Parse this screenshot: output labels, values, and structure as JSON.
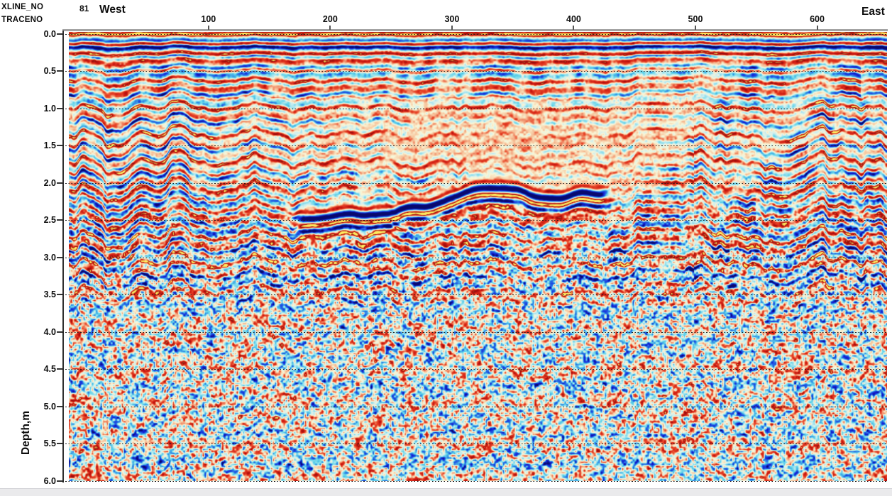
{
  "header": {
    "xline_label": "XLINE_NO",
    "xline_value": "81",
    "trace_label": "TRACENO",
    "west": "West",
    "east": "East"
  },
  "axes": {
    "x": {
      "name": "TRACENO",
      "tick_labels": [
        "100",
        "200",
        "300",
        "400",
        "500",
        "600"
      ],
      "tick_values": [
        100,
        200,
        300,
        400,
        500,
        600
      ],
      "range": [
        -20,
        658
      ]
    },
    "y": {
      "title": "Depth,m",
      "tick_labels": [
        "0.0",
        "0.5",
        "1.0",
        "1.5",
        "2.0",
        "2.5",
        "3.0",
        "3.5",
        "4.0",
        "4.5",
        "5.0",
        "5.5",
        "6.0"
      ],
      "tick_values": [
        0,
        0.5,
        1,
        1.5,
        2,
        2.5,
        3,
        3.5,
        4,
        4.5,
        5,
        5.5,
        6
      ],
      "range": [
        0,
        6
      ]
    }
  },
  "chart_data": {
    "type": "heatmap",
    "subtype": "seismic-depth-section",
    "crossline_number": 81,
    "orientation": {
      "left": "West",
      "right": "East"
    },
    "x_axis": {
      "name": "TRACENO",
      "tick_values": [
        100,
        200,
        300,
        400,
        500,
        600
      ],
      "approx_range": [
        -20,
        658
      ]
    },
    "y_axis": {
      "name": "Depth,m",
      "tick_values": [
        0,
        0.5,
        1,
        1.5,
        2,
        2.5,
        3,
        3.5,
        4,
        4.5,
        5,
        5.5,
        6
      ],
      "range": [
        0,
        6
      ],
      "units": "m"
    },
    "grid": {
      "horizontal_dotted_lines_every_m": 0.5
    },
    "amplitude_palette": {
      "extreme_negative": "#0a0a6e",
      "negative": "#1423d7",
      "weak_negative": "#5ad2e6",
      "zero": "#faf7d7",
      "weak_positive": "#f6be96",
      "positive": "#e84628",
      "strong_positive": "#9c0e0e",
      "extreme_positive": "#ffeb5f"
    },
    "features": [
      {
        "name": "surface-layering",
        "depth_range_m": [
          0.0,
          0.35
        ],
        "trace_range": [
          -20,
          658
        ],
        "description": "continuous high-amplitude horizontal red/blue banding with yellow peak cores along the full section top"
      },
      {
        "name": "shallow-wiggly-reflectors",
        "depth_range_m": [
          0.35,
          2.0
        ],
        "trace_range": [
          -20,
          658
        ],
        "description": "semi-continuous wiggly red/blue reflectors broken by vertical curtain streaks, most chaotic near west and east edges"
      },
      {
        "name": "amplitude-washout-zone",
        "trace_range": [
          230,
          450
        ],
        "depth_range_m": [
          0.9,
          2.1
        ],
        "center_depth_m": 1.5,
        "description": "pale cream/cyan low-amplitude washout zone directly above the bright reflector"
      },
      {
        "name": "bright-reflector",
        "trace_range": [
          165,
          436
        ],
        "depth_start_m": 2.5,
        "depth_end_m": 2.18,
        "description": "high-amplitude sinuous event: red over thick dark-blue trough over bright-yellow peak over blue, shallowing from ~2.5 m in the west to ~2.15-2.25 m in the east"
      },
      {
        "name": "sub-reflector-banding",
        "depth_range_m": [
          2.55,
          3.15
        ],
        "trace_range": [
          -20,
          658
        ],
        "description": "strong red/blue banding beneath the bright reflector across the full width"
      },
      {
        "name": "incoherent-deep-zone",
        "depth_range_m": [
          3.2,
          6.0
        ],
        "trace_range": [
          -20,
          658
        ],
        "description": "fine incoherent speckle, mostly cyan and cream with scattered red and navy specks and faint residual horizontal banding"
      }
    ]
  },
  "ui": {
    "bottom_bar": "window-scrollbar"
  }
}
